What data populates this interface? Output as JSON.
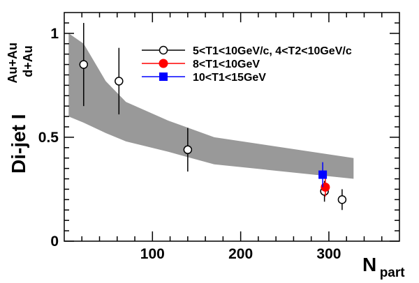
{
  "chart_data": {
    "type": "scatter",
    "title": "",
    "xlabel": {
      "main": "N",
      "sub": "part"
    },
    "ylabel": {
      "main": "Di-jet I",
      "sup": "Au+Au",
      "sub": "d+Au"
    },
    "xlim": [
      0,
      380
    ],
    "ylim": [
      0,
      1.1
    ],
    "x_ticks": [
      100,
      200,
      300
    ],
    "y_ticks": [
      0,
      0.5,
      1
    ],
    "y_tick_labels": [
      "0",
      "0.5",
      "1"
    ],
    "grid": false,
    "legend_position": "top-right",
    "band": {
      "color": "#999999",
      "x": [
        5,
        22,
        47,
        70,
        118,
        170,
        328
      ],
      "upper": [
        1.0,
        0.95,
        0.77,
        0.67,
        0.58,
        0.5,
        0.4
      ],
      "lower": [
        0.6,
        0.57,
        0.52,
        0.48,
        0.43,
        0.37,
        0.3
      ]
    },
    "series": [
      {
        "name": "5<T1<10GeV/c, 4<T2<10GeV/c",
        "marker": "open-circle",
        "color": "#000000",
        "points": [
          {
            "x": 22,
            "y": 0.85,
            "yerr": 0.2
          },
          {
            "x": 62,
            "y": 0.77,
            "yerr": 0.16
          },
          {
            "x": 140,
            "y": 0.44,
            "yerr": 0.105
          },
          {
            "x": 295,
            "y": 0.24,
            "yerr": 0.05
          },
          {
            "x": 315,
            "y": 0.2,
            "yerr": 0.05
          }
        ]
      },
      {
        "name": "8<T1<10GeV",
        "marker": "filled-circle",
        "color": "#ff0000",
        "points": [
          {
            "x": 296,
            "y": 0.26,
            "yerr": 0.045
          }
        ]
      },
      {
        "name": "10<T1<15GeV",
        "marker": "filled-square",
        "color": "#0000ff",
        "points": [
          {
            "x": 293,
            "y": 0.32,
            "yerr": 0.06
          }
        ]
      }
    ]
  }
}
